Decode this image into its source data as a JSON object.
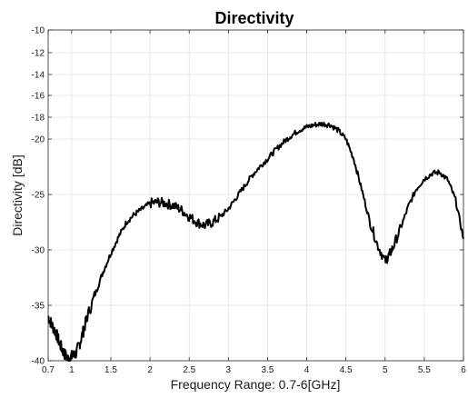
{
  "chart_data": {
    "type": "line",
    "title": "Directivity",
    "xlabel": "Frequency Range: 0.7-6[GHz]",
    "ylabel": "Directivity [dB]",
    "xlim": [
      0.7,
      6
    ],
    "ylim": [
      -40,
      -10
    ],
    "xticks": [
      0.7,
      1,
      1.5,
      2,
      2.5,
      3,
      3.5,
      4,
      4.5,
      5,
      5.5,
      6
    ],
    "xtick_labels": [
      "0.7",
      "1",
      "1.5",
      "2",
      "2.5",
      "3",
      "3.5",
      "4",
      "4.5",
      "5",
      "5.5",
      "6"
    ],
    "yticks": [
      -40,
      -35,
      -30,
      -25,
      -20,
      -18,
      -16,
      -14,
      -12,
      -10
    ],
    "ytick_labels": [
      "-40",
      "-35",
      "-30",
      "-25",
      "-20",
      "-18",
      "-16",
      "-14",
      "-12",
      "-10"
    ],
    "grid": true,
    "line_color": "#000000",
    "series": [
      {
        "x": [
          0.7,
          0.75,
          0.8,
          0.85,
          0.9,
          0.95,
          1.0,
          1.05,
          1.1,
          1.15,
          1.2,
          1.3,
          1.4,
          1.5,
          1.6,
          1.7,
          1.8,
          1.9,
          2.0,
          2.1,
          2.2,
          2.3,
          2.4,
          2.5,
          2.6,
          2.7,
          2.8,
          2.9,
          3.0,
          3.1,
          3.2,
          3.3,
          3.4,
          3.5,
          3.6,
          3.7,
          3.8,
          3.9,
          4.0,
          4.1,
          4.2,
          4.3,
          4.4,
          4.5,
          4.6,
          4.7,
          4.8,
          4.9,
          5.0,
          5.05,
          5.1,
          5.2,
          5.3,
          5.4,
          5.5,
          5.6,
          5.7,
          5.8,
          5.9,
          6.0
        ],
        "y": [
          -36.0,
          -36.8,
          -37.5,
          -38.5,
          -39.3,
          -39.8,
          -39.6,
          -39.4,
          -38.5,
          -37.3,
          -36.0,
          -34.0,
          -32.0,
          -30.3,
          -28.8,
          -27.5,
          -26.8,
          -26.3,
          -25.8,
          -25.7,
          -25.8,
          -26.0,
          -26.4,
          -27.0,
          -27.5,
          -27.8,
          -27.5,
          -27.0,
          -26.3,
          -25.3,
          -24.3,
          -23.3,
          -22.5,
          -21.8,
          -21.0,
          -20.3,
          -19.7,
          -19.2,
          -18.9,
          -18.7,
          -18.6,
          -18.7,
          -19.2,
          -20.0,
          -21.8,
          -24.5,
          -27.3,
          -29.5,
          -31.0,
          -30.5,
          -29.8,
          -28.0,
          -26.0,
          -24.5,
          -23.6,
          -23.1,
          -23.0,
          -23.7,
          -25.5,
          -29.0
        ]
      }
    ]
  }
}
